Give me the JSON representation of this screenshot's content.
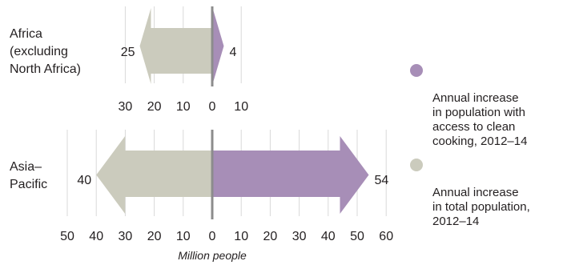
{
  "colors": {
    "access": "#a78eb7",
    "total": "#cbcbbd",
    "axis": "#8c8c8c",
    "text": "#231f20"
  },
  "chart_data": {
    "type": "bar",
    "orientation": "horizontal",
    "xlabel": "Million people",
    "panels": [
      {
        "category": "Africa\n(excluding\nNorth Africa)",
        "xlim": [
          -30,
          10
        ],
        "ticks": [
          -30,
          -20,
          -10,
          0,
          10
        ],
        "tick_labels": [
          "30",
          "20",
          "10",
          "0",
          "10"
        ],
        "total_population": 25,
        "clean_cooking": 4
      },
      {
        "category": "Asia–\nPacific",
        "xlim": [
          -50,
          60
        ],
        "ticks": [
          -50,
          -40,
          -30,
          -20,
          -10,
          0,
          10,
          20,
          30,
          40,
          50,
          60
        ],
        "tick_labels": [
          "50",
          "40",
          "30",
          "20",
          "10",
          "0",
          "10",
          "20",
          "30",
          "40",
          "50",
          "60"
        ],
        "total_population": 40,
        "clean_cooking": 54
      }
    ],
    "legend": [
      {
        "key": "clean_cooking",
        "label": "Annual increase\nin population with\naccess to clean\ncooking, 2012–14"
      },
      {
        "key": "total_population",
        "label": "Annual increase\nin total population,\n2012–14"
      }
    ],
    "legend_position": "right"
  }
}
